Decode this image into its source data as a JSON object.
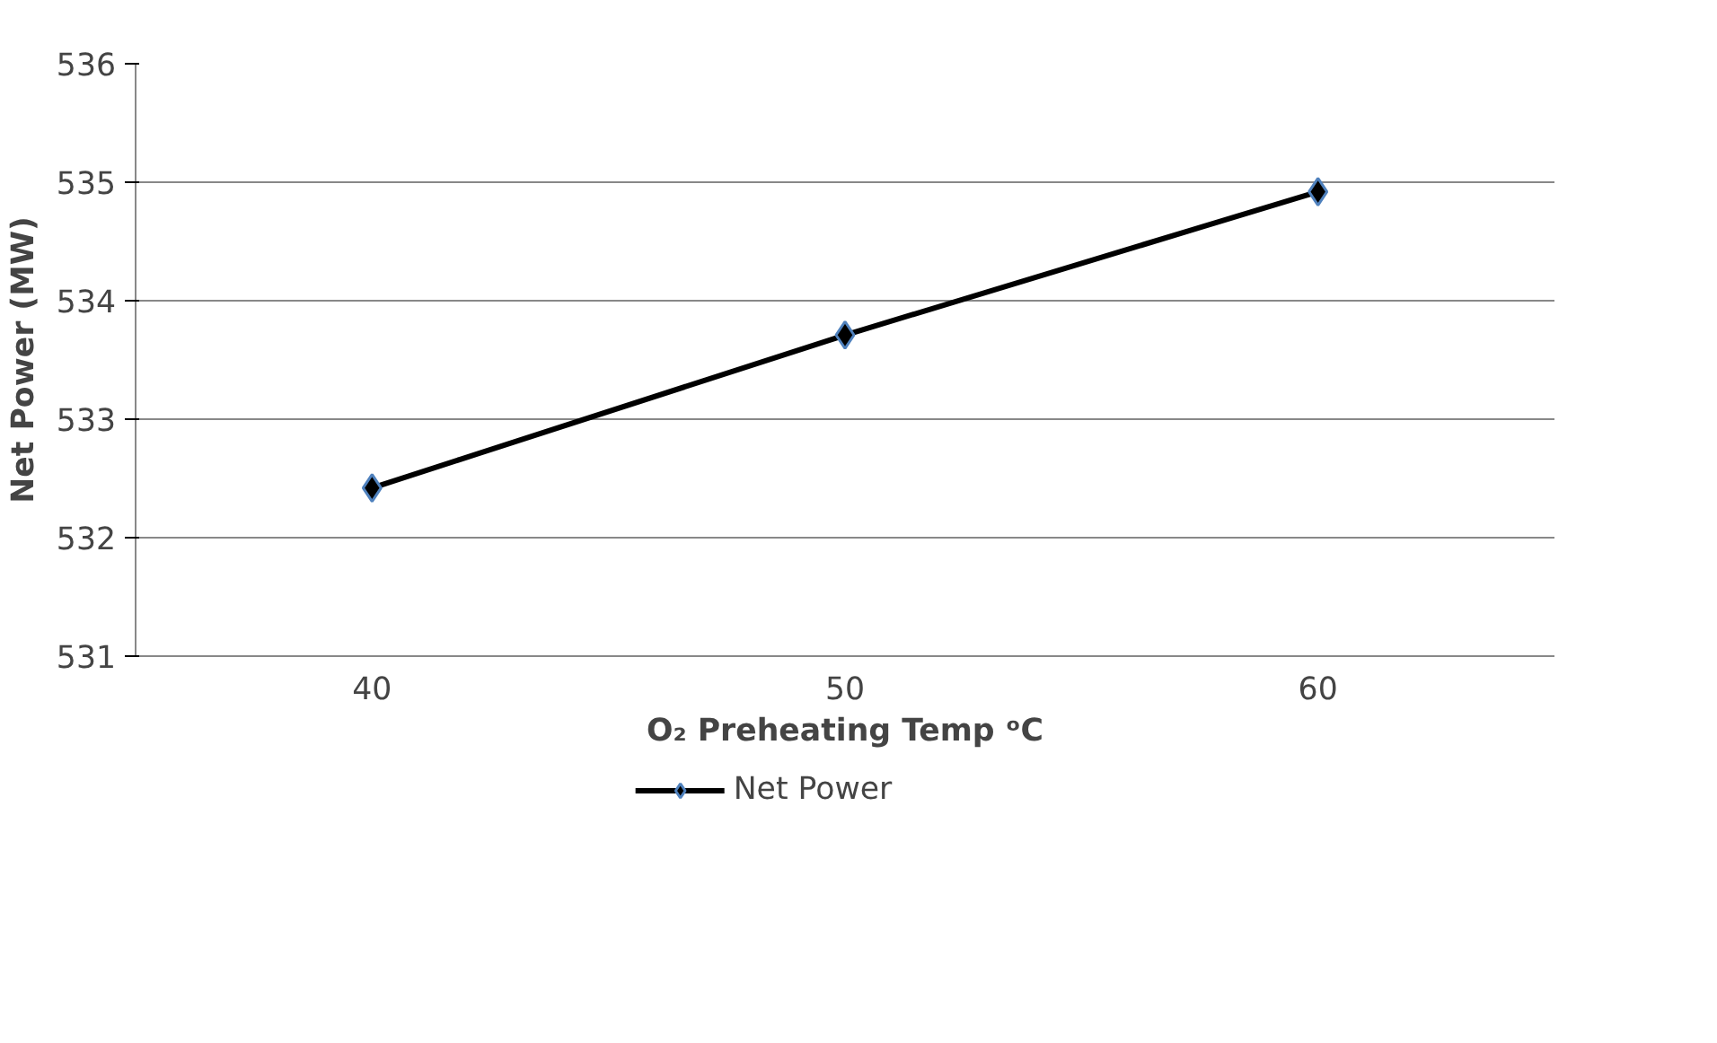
{
  "chart_data": {
    "type": "line",
    "xlabel": "O₂ Preheating Temp ᵒC",
    "ylabel": "Net Power (MW)",
    "categories": [
      "40",
      "50",
      "60"
    ],
    "series": [
      {
        "name": "Net Power",
        "color": "#000000",
        "values": [
          532.42,
          533.71,
          534.92
        ]
      }
    ],
    "ylim": [
      531,
      536
    ],
    "yticks": [
      531,
      532,
      533,
      534,
      535,
      536
    ],
    "grid": "y",
    "legend": "bottom",
    "marker": "diamond",
    "line_style": "solid"
  }
}
